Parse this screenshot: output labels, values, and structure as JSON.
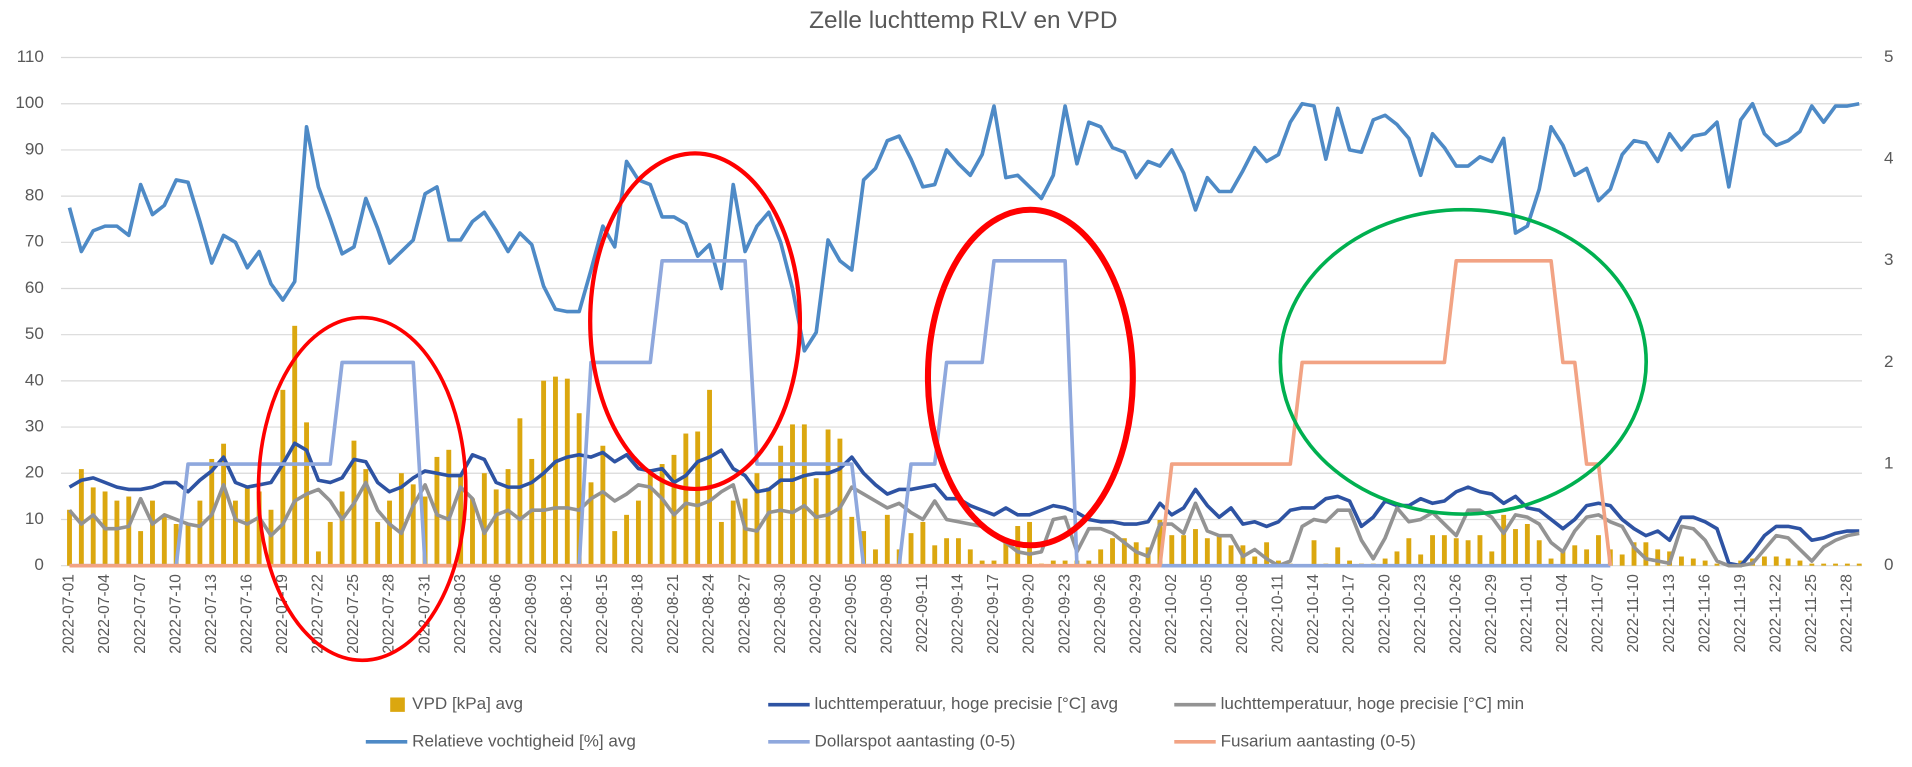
{
  "chart_data": {
    "type": "combo",
    "title": "Zelle luchttemp RLV en VPD",
    "categories": [
      "2022-07-01",
      null,
      null,
      "2022-07-04",
      null,
      null,
      "2022-07-07",
      null,
      null,
      "2022-07-10",
      null,
      null,
      "2022-07-13",
      null,
      null,
      "2022-07-16",
      null,
      null,
      "2022-07-19",
      null,
      null,
      "2022-07-22",
      null,
      null,
      "2022-07-25",
      null,
      null,
      "2022-07-28",
      null,
      null,
      "2022-07-31",
      null,
      null,
      "2022-08-03",
      null,
      null,
      "2022-08-06",
      null,
      null,
      "2022-08-09",
      null,
      null,
      "2022-08-12",
      null,
      null,
      "2022-08-15",
      null,
      null,
      "2022-08-18",
      null,
      null,
      "2022-08-21",
      null,
      null,
      "2022-08-24",
      null,
      null,
      "2022-08-27",
      null,
      null,
      "2022-08-30",
      null,
      null,
      "2022-09-02",
      null,
      null,
      "2022-09-05",
      null,
      null,
      "2022-09-08",
      null,
      null,
      "2022-09-11",
      null,
      null,
      "2022-09-14",
      null,
      null,
      "2022-09-17",
      null,
      null,
      "2022-09-20",
      null,
      null,
      "2022-09-23",
      null,
      null,
      "2022-09-26",
      null,
      null,
      "2022-09-29",
      null,
      null,
      "2022-10-02",
      null,
      null,
      "2022-10-05",
      null,
      null,
      "2022-10-08",
      null,
      null,
      "2022-10-11",
      null,
      null,
      "2022-10-14",
      null,
      null,
      "2022-10-17",
      null,
      null,
      "2022-10-20",
      null,
      null,
      "2022-10-23",
      null,
      null,
      "2022-10-26",
      null,
      null,
      "2022-10-29",
      null,
      null,
      "2022-11-01",
      null,
      null,
      "2022-11-04",
      null,
      null,
      "2022-11-07",
      null,
      null,
      "2022-11-10",
      null,
      null,
      "2022-11-13",
      null,
      null,
      "2022-11-16",
      null,
      null,
      "2022-11-19",
      null,
      null,
      "2022-11-22",
      null,
      null,
      "2022-11-25",
      null,
      null,
      "2022-11-28",
      null
    ],
    "ylim": [
      0,
      110
    ],
    "yticks": [
      0,
      10,
      20,
      30,
      40,
      50,
      60,
      70,
      80,
      90,
      100,
      110
    ],
    "y2lim": [
      0,
      5
    ],
    "y2ticks": [
      0,
      1,
      2,
      3,
      4,
      5
    ],
    "grid": true,
    "legend": "bottom",
    "series": [
      {
        "name": "VPD [kPa] avg",
        "type": "bar",
        "axis": "y2",
        "color": "#DBA70F",
        "values": [
          0.55,
          0.95,
          0.77,
          0.73,
          0.64,
          0.68,
          0.34,
          0.64,
          0.5,
          0.41,
          0.41,
          0.64,
          1.05,
          1.2,
          0.64,
          0.77,
          0.73,
          0.55,
          1.73,
          2.36,
          1.41,
          0.14,
          0.43,
          0.73,
          1.23,
          0.95,
          0.43,
          0.64,
          0.91,
          0.8,
          0.68,
          1.07,
          1.14,
          0.89,
          0.66,
          0.91,
          0.75,
          0.95,
          1.45,
          1.05,
          1.82,
          1.86,
          1.84,
          1.5,
          0.82,
          1.18,
          0.34,
          0.5,
          0.64,
          0.95,
          1.0,
          1.09,
          1.3,
          1.32,
          1.73,
          0.43,
          0.64,
          0.66,
          0.91,
          0.77,
          1.18,
          1.39,
          1.39,
          0.86,
          1.34,
          1.25,
          0.48,
          0.34,
          0.16,
          0.5,
          0.16,
          0.32,
          0.43,
          0.2,
          0.27,
          0.27,
          0.16,
          0.05,
          0.05,
          0.27,
          0.39,
          0.43,
          0.02,
          0.05,
          0.05,
          0.05,
          0.05,
          0.16,
          0.27,
          0.27,
          0.23,
          0.18,
          0.45,
          0.3,
          0.3,
          0.36,
          0.27,
          0.3,
          0.2,
          0.2,
          0.09,
          0.23,
          0.05,
          0.02,
          0,
          0.25,
          0.02,
          0.18,
          0.05,
          0.02,
          0.02,
          0.07,
          0.14,
          0.27,
          0.11,
          0.3,
          0.3,
          0.27,
          0.25,
          0.3,
          0.14,
          0.5,
          0.36,
          0.41,
          0.25,
          0.07,
          0.16,
          0.2,
          0.16,
          0.3,
          0.16,
          0.11,
          0.23,
          0.23,
          0.16,
          0.14,
          0.09,
          0.07,
          0.05,
          0.02,
          0.02,
          0.05,
          0.07,
          0.09,
          0.09,
          0.07,
          0.05,
          0.02,
          0.02,
          0.02,
          0.02,
          0.02
        ]
      },
      {
        "name": "luchttemperatuur, hoge precisie [°C] avg",
        "type": "line",
        "color": "#2E53A3",
        "values": [
          17,
          18.5,
          19,
          18,
          17,
          16.5,
          16.5,
          17,
          18,
          18,
          16,
          18.5,
          20.5,
          23.5,
          18,
          17,
          17.5,
          18,
          22,
          26.5,
          25,
          18.5,
          18,
          19,
          23,
          22.5,
          18,
          16,
          17,
          19,
          20.5,
          20,
          19.5,
          19.5,
          24,
          23,
          18,
          17,
          17,
          18,
          20,
          22.5,
          23.5,
          24,
          23.5,
          24.5,
          22.5,
          24,
          21,
          20.5,
          21,
          18,
          19.5,
          22.5,
          23.5,
          25,
          21,
          19.5,
          16,
          16.5,
          18.5,
          18.5,
          19.5,
          20,
          20,
          21,
          23.5,
          20,
          17.5,
          15.5,
          16.5,
          16.5,
          17,
          17.5,
          14.5,
          14.5,
          13,
          12,
          11,
          12.5,
          11,
          11,
          12,
          13,
          12.5,
          11.5,
          10,
          9.5,
          9.5,
          9,
          9,
          9.5,
          13.5,
          11,
          12.5,
          16.5,
          13,
          10.5,
          12.5,
          9,
          9.5,
          8.5,
          9.5,
          12,
          12.5,
          12.5,
          14.5,
          15,
          14,
          8.5,
          10.5,
          14,
          13,
          13,
          14.5,
          13.5,
          14,
          16,
          17,
          16,
          15.5,
          13.5,
          15,
          12.5,
          12,
          10,
          8,
          10,
          13,
          13.5,
          13,
          10,
          8,
          6.5,
          7.5,
          5.5,
          10.5,
          10.5,
          9.5,
          8,
          0.5,
          0,
          3,
          6.5,
          8.5,
          8.5,
          8,
          5.5,
          6,
          7,
          7.5,
          7.5
        ]
      },
      {
        "name": "luchttemperatuur, hoge precisie [°C] min",
        "type": "line",
        "color": "#939393",
        "values": [
          12,
          9,
          11,
          8,
          8,
          8.5,
          14.5,
          9,
          11,
          10,
          9,
          8.5,
          11,
          17.5,
          10,
          9,
          10.5,
          6.5,
          9,
          14,
          15.5,
          16.5,
          14,
          10,
          13.5,
          18,
          12,
          9,
          7,
          13,
          17.5,
          11,
          10,
          17,
          14.5,
          7,
          11,
          12,
          10,
          12,
          12,
          12.5,
          12.5,
          12,
          14.5,
          16,
          14,
          15.5,
          17.5,
          17,
          14.5,
          11,
          13.5,
          13,
          14,
          16,
          17.5,
          8,
          7.5,
          11.5,
          12,
          11.5,
          13,
          10.5,
          11,
          12.5,
          17,
          15.5,
          14,
          12.5,
          13.5,
          11.5,
          10,
          14,
          10,
          9.5,
          9,
          8.5,
          6.5,
          5,
          3,
          2.5,
          3,
          10,
          10.5,
          3,
          8,
          8,
          7,
          5,
          3,
          2,
          9,
          9,
          7,
          13.5,
          7.5,
          6.5,
          6.5,
          2,
          3.5,
          1.5,
          0,
          1,
          8.5,
          10,
          9.5,
          12,
          12,
          5.5,
          1.5,
          6,
          12.5,
          9.5,
          10,
          11.5,
          9,
          6.5,
          12,
          12,
          10.5,
          7,
          11,
          10.5,
          9,
          5,
          3,
          7.5,
          10.5,
          11,
          9.5,
          8.5,
          4,
          1.5,
          1,
          0.5,
          8.5,
          8,
          5.5,
          1,
          0,
          0,
          0.5,
          3.5,
          6.5,
          6,
          3.5,
          1,
          4,
          5.5,
          6.5,
          7
        ]
      },
      {
        "name": "Relatieve vochtigheid [%] avg",
        "type": "line",
        "color": "#4E8AC6",
        "values": [
          77.5,
          68,
          72.5,
          73.5,
          73.5,
          71.5,
          82.5,
          76,
          78,
          83.5,
          83,
          74.5,
          65.5,
          71.5,
          70,
          64.5,
          68,
          61,
          57.5,
          61.5,
          95,
          82,
          75,
          67.5,
          69,
          79.5,
          73,
          65.5,
          68,
          70.5,
          80.5,
          82,
          70.5,
          70.5,
          74.5,
          76.5,
          72.5,
          68,
          72,
          69.5,
          60.5,
          55.5,
          55,
          55,
          64,
          73.5,
          69,
          87.5,
          83.5,
          82.5,
          75.5,
          75.5,
          74,
          67,
          69.5,
          60,
          82.5,
          68,
          73.5,
          76.5,
          70,
          60,
          46.5,
          50.5,
          70.5,
          66,
          64,
          83.5,
          86,
          92,
          93,
          88,
          82,
          82.5,
          90,
          87,
          84.5,
          89,
          99.5,
          84,
          84.5,
          82,
          79.5,
          84.5,
          99.5,
          87,
          96,
          95,
          90.5,
          89.5,
          84,
          87.5,
          86.5,
          90,
          85,
          77,
          84,
          81,
          81,
          85.5,
          90.5,
          87.5,
          89,
          96,
          100,
          99.5,
          88,
          99,
          90,
          89.5,
          96.5,
          97.5,
          95.5,
          92.5,
          84.5,
          93.5,
          90.5,
          86.5,
          86.5,
          88.5,
          87.5,
          92.5,
          72,
          73.5,
          81.5,
          95,
          91,
          84.5,
          86,
          79,
          81.5,
          89,
          92,
          91.5,
          87.5,
          93.5,
          90,
          93,
          93.5,
          96,
          82,
          96.5,
          100,
          93.5,
          91,
          92,
          94,
          99.5,
          96,
          99.5,
          99.5,
          100
        ]
      },
      {
        "name": "Dollarspot aantasting (0-5)",
        "type": "line",
        "axis": "y2",
        "color": "#8FA8DD",
        "values": [
          0,
          0,
          0,
          0,
          0,
          0,
          0,
          0,
          0,
          0,
          1,
          1,
          1,
          1,
          1,
          1,
          1,
          1,
          1,
          1,
          1,
          1,
          1,
          2,
          2,
          2,
          2,
          2,
          2,
          2,
          0,
          0,
          0,
          0,
          0,
          0,
          0,
          0,
          0,
          0,
          0,
          0,
          0,
          0,
          2,
          2,
          2,
          2,
          2,
          2,
          3,
          3,
          3,
          3,
          3,
          3,
          3,
          3,
          1,
          1,
          1,
          1,
          1,
          1,
          1,
          1,
          1,
          0,
          0,
          0,
          0,
          1,
          1,
          1,
          2,
          2,
          2,
          2,
          3,
          3,
          3,
          3,
          3,
          3,
          3,
          0,
          0,
          0,
          0,
          0,
          0,
          0,
          0,
          0,
          0,
          0,
          0,
          0,
          0,
          0,
          0,
          0,
          0,
          0,
          0,
          0,
          0,
          0,
          0,
          0,
          0,
          0,
          0,
          0,
          0,
          0,
          0,
          0,
          0,
          0,
          0,
          0,
          0,
          0,
          0,
          0,
          0,
          0,
          0,
          0,
          0,
          null,
          null,
          null,
          null,
          null,
          null,
          null,
          null,
          null,
          null,
          null,
          null,
          null,
          null,
          null,
          null,
          null,
          null,
          null,
          null,
          null
        ]
      },
      {
        "name": "Fusarium aantasting (0-5)",
        "type": "line",
        "axis": "y2",
        "color": "#F2A384",
        "values": [
          0,
          0,
          0,
          0,
          0,
          0,
          0,
          0,
          0,
          0,
          0,
          0,
          0,
          0,
          0,
          0,
          0,
          0,
          0,
          0,
          0,
          0,
          0,
          0,
          0,
          0,
          0,
          0,
          0,
          0,
          0,
          0,
          0,
          0,
          0,
          0,
          0,
          0,
          0,
          0,
          0,
          0,
          0,
          0,
          0,
          0,
          0,
          0,
          0,
          0,
          0,
          0,
          0,
          0,
          0,
          0,
          0,
          0,
          0,
          0,
          0,
          0,
          0,
          0,
          0,
          0,
          0,
          0,
          0,
          0,
          0,
          0,
          0,
          0,
          0,
          0,
          0,
          0,
          0,
          0,
          0,
          0,
          0,
          0,
          0,
          0,
          0,
          0,
          0,
          0,
          0,
          0,
          0,
          1,
          1,
          1,
          1,
          1,
          1,
          1,
          1,
          1,
          1,
          1,
          2,
          2,
          2,
          2,
          2,
          2,
          2,
          2,
          2,
          2,
          2,
          2,
          2,
          3,
          3,
          3,
          3,
          3,
          3,
          3,
          3,
          3,
          2,
          2,
          1,
          1,
          0,
          null,
          null,
          null,
          null,
          null,
          null,
          null,
          null,
          null,
          null,
          null,
          null,
          null,
          null,
          null,
          null,
          null,
          null,
          null,
          null,
          null
        ]
      }
    ]
  }
}
